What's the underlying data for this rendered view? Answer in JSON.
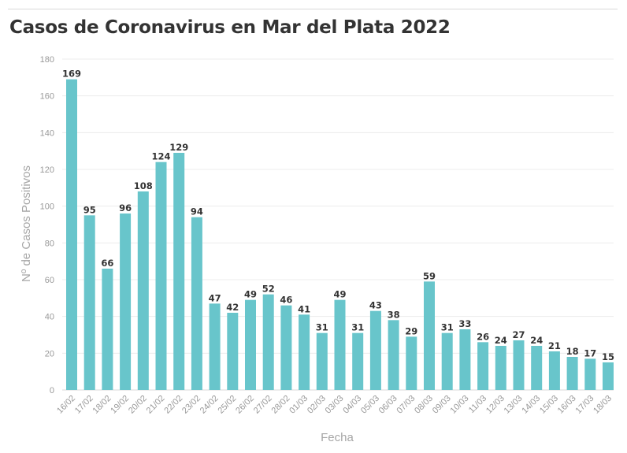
{
  "chart_data": {
    "type": "bar",
    "title": "Casos de Coronavirus en Mar del Plata 2022",
    "xlabel": "Fecha",
    "ylabel": "Nº de Casos Positivos",
    "ylim": [
      0,
      180
    ],
    "yticks": [
      0,
      20,
      40,
      60,
      80,
      100,
      120,
      140,
      160,
      180
    ],
    "grid": true,
    "bar_color": "#68c5cb",
    "categories": [
      "16/02",
      "17/02",
      "18/02",
      "19/02",
      "20/02",
      "21/02",
      "22/02",
      "23/02",
      "24/02",
      "25/02",
      "26/02",
      "27/02",
      "28/02",
      "01/03",
      "02/03",
      "03/03",
      "04/03",
      "05/03",
      "06/03",
      "07/03",
      "08/03",
      "09/03",
      "10/03",
      "11/03",
      "12/03",
      "13/03",
      "14/03",
      "15/03",
      "16/03",
      "17/03",
      "18/03"
    ],
    "values": [
      169,
      95,
      66,
      96,
      108,
      124,
      129,
      94,
      47,
      42,
      49,
      52,
      46,
      41,
      31,
      49,
      31,
      43,
      38,
      29,
      59,
      31,
      33,
      26,
      24,
      27,
      24,
      21,
      18,
      17,
      15
    ]
  }
}
